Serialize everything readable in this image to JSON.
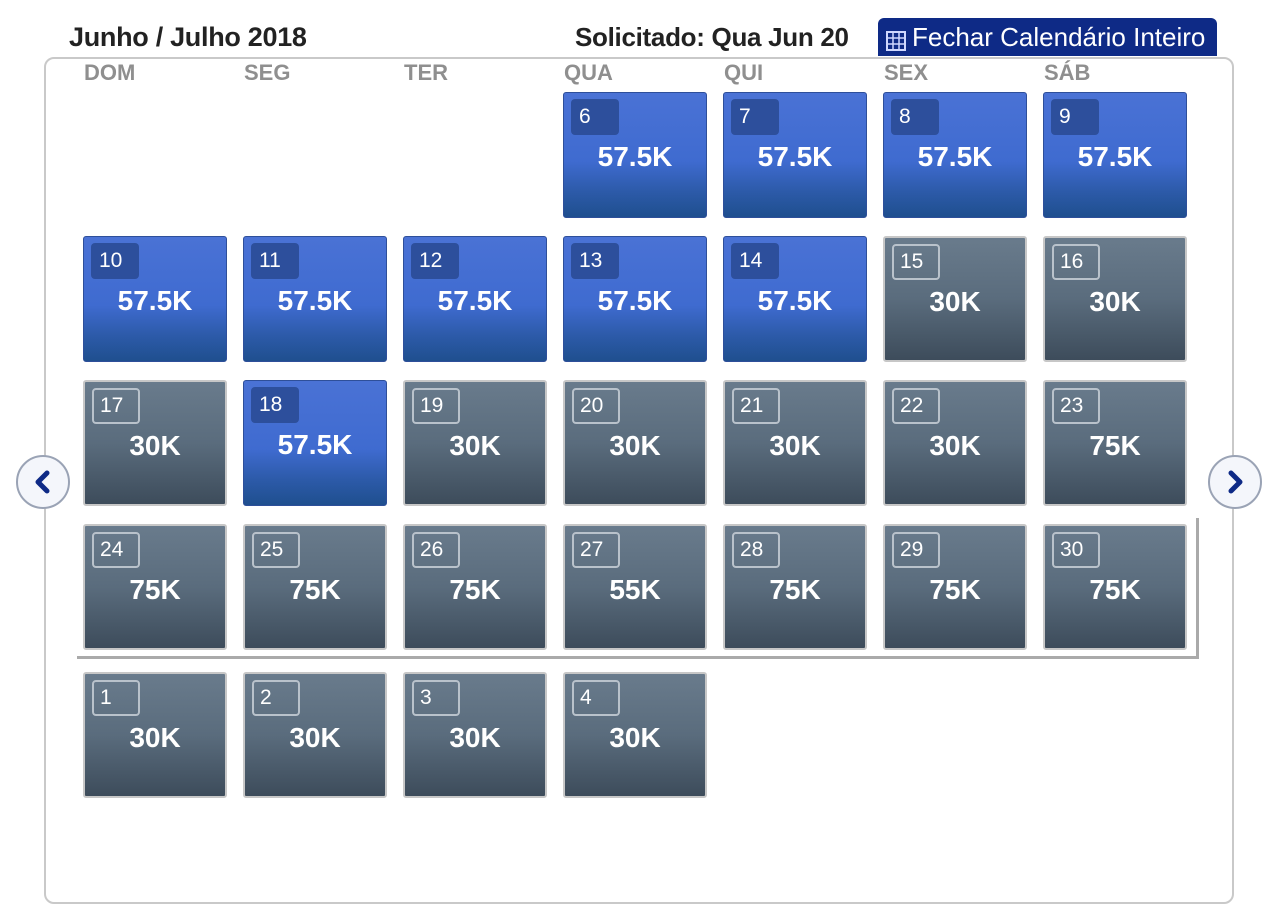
{
  "header": {
    "title": "Junho / Julho 2018",
    "requested": "Solicitado: Qua Jun 20",
    "close_label": "Fechar Calendário Inteiro"
  },
  "weekdays": [
    "DOM",
    "SEG",
    "TER",
    "QUA",
    "QUI",
    "SEX",
    "SÁB"
  ],
  "rows": [
    [
      null,
      null,
      null,
      {
        "day": "6",
        "price": "57.5K",
        "style": "blue"
      },
      {
        "day": "7",
        "price": "57.5K",
        "style": "blue"
      },
      {
        "day": "8",
        "price": "57.5K",
        "style": "blue"
      },
      {
        "day": "9",
        "price": "57.5K",
        "style": "blue"
      }
    ],
    [
      {
        "day": "10",
        "price": "57.5K",
        "style": "blue"
      },
      {
        "day": "11",
        "price": "57.5K",
        "style": "blue"
      },
      {
        "day": "12",
        "price": "57.5K",
        "style": "blue"
      },
      {
        "day": "13",
        "price": "57.5K",
        "style": "blue"
      },
      {
        "day": "14",
        "price": "57.5K",
        "style": "blue"
      },
      {
        "day": "15",
        "price": "30K",
        "style": "gray"
      },
      {
        "day": "16",
        "price": "30K",
        "style": "gray"
      }
    ],
    [
      {
        "day": "17",
        "price": "30K",
        "style": "gray"
      },
      {
        "day": "18",
        "price": "57.5K",
        "style": "blue"
      },
      {
        "day": "19",
        "price": "30K",
        "style": "gray"
      },
      {
        "day": "20",
        "price": "30K",
        "style": "gray"
      },
      {
        "day": "21",
        "price": "30K",
        "style": "gray"
      },
      {
        "day": "22",
        "price": "30K",
        "style": "gray"
      },
      {
        "day": "23",
        "price": "75K",
        "style": "gray"
      }
    ],
    [
      {
        "day": "24",
        "price": "75K",
        "style": "gray"
      },
      {
        "day": "25",
        "price": "75K",
        "style": "gray"
      },
      {
        "day": "26",
        "price": "75K",
        "style": "gray"
      },
      {
        "day": "27",
        "price": "55K",
        "style": "gray"
      },
      {
        "day": "28",
        "price": "75K",
        "style": "gray"
      },
      {
        "day": "29",
        "price": "75K",
        "style": "gray"
      },
      {
        "day": "30",
        "price": "75K",
        "style": "gray"
      }
    ],
    [
      {
        "day": "1",
        "price": "30K",
        "style": "gray"
      },
      {
        "day": "2",
        "price": "30K",
        "style": "gray"
      },
      {
        "day": "3",
        "price": "30K",
        "style": "gray"
      },
      {
        "day": "4",
        "price": "30K",
        "style": "gray"
      },
      null,
      null,
      null
    ]
  ],
  "icons": {
    "calendar": "calendar-grid-icon",
    "prev": "chevron-left-icon",
    "next": "chevron-right-icon"
  },
  "colors": {
    "accent": "#0e2a86",
    "available_blue": "#3f6bd0",
    "cell_gray": "#5a6c7d"
  }
}
